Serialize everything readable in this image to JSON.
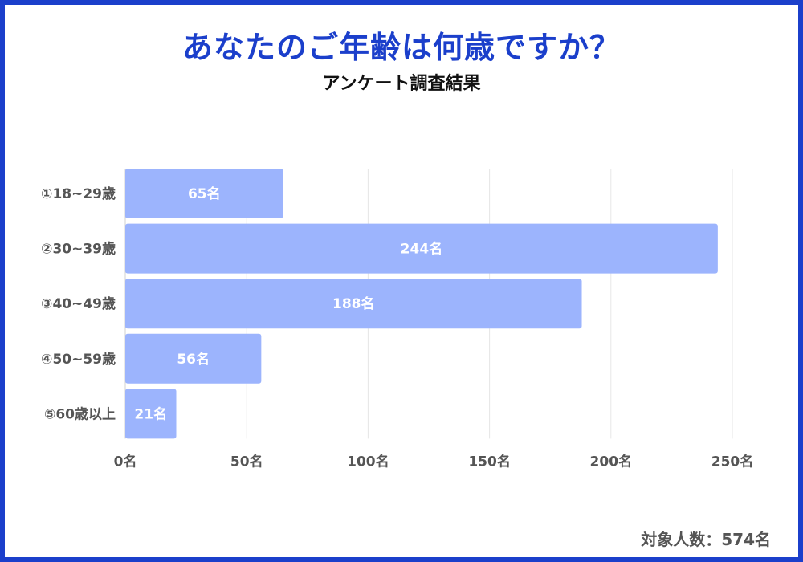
{
  "title": "あなたのご年齢は何歳ですか？",
  "subtitle": "アンケート調査結果",
  "footer": "対象人数：574名",
  "colors": {
    "frame": "#1b3fcb",
    "title": "#1b3fcb",
    "bar": "#9cb4fd",
    "grid": "#e6e6e6",
    "axis_text": "#555555",
    "bar_label": "#ffffff"
  },
  "chart_data": {
    "type": "bar",
    "orientation": "horizontal",
    "categories": [
      "①18~29歳",
      "②30~39歳",
      "③40~49歳",
      "④50~59歳",
      "⑤60歳以上"
    ],
    "values": [
      65,
      244,
      188,
      56,
      21
    ],
    "value_labels": [
      "65名",
      "244名",
      "188名",
      "56名",
      "21名"
    ],
    "xlim": [
      0,
      250
    ],
    "xticks": [
      0,
      50,
      100,
      150,
      200,
      250
    ],
    "xtick_labels": [
      "0名",
      "50名",
      "100名",
      "150名",
      "200名",
      "250名"
    ],
    "xlabel": "",
    "ylabel": "",
    "grid": "vertical"
  }
}
